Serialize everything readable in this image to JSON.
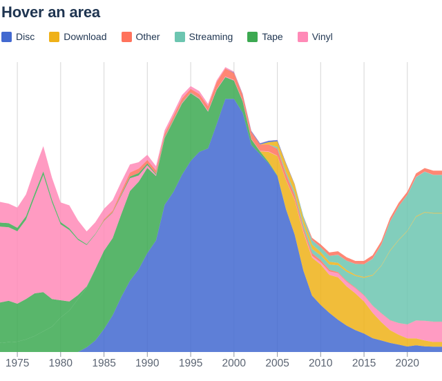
{
  "title": "Hover an area",
  "legend": {
    "items": [
      {
        "label": "Disc",
        "color": "#4269d0"
      },
      {
        "label": "Download",
        "color": "#efb118"
      },
      {
        "label": "Other",
        "color": "#ff725c"
      },
      {
        "label": "Streaming",
        "color": "#6cc5b0"
      },
      {
        "label": "Tape",
        "color": "#3ca951"
      },
      {
        "label": "Vinyl",
        "color": "#ff8ab7"
      }
    ]
  },
  "axis": {
    "x_ticks": [
      1975,
      1980,
      1985,
      1990,
      1995,
      2000,
      2005,
      2010,
      2015,
      2020
    ],
    "tick_color": "#8f96a0",
    "label_color": "#5b6472",
    "grid_color": "#d6d6d6"
  },
  "chart_data": {
    "type": "area",
    "stacked": true,
    "title": "Hover an area",
    "xlabel": "",
    "ylabel": "",
    "ylim": [
      0,
      25.2
    ],
    "grid": "vertical",
    "legend_position": "top",
    "fill_opacity": 0.85,
    "x": [
      1973,
      1974,
      1975,
      1976,
      1977,
      1978,
      1979,
      1980,
      1981,
      1982,
      1983,
      1984,
      1985,
      1986,
      1987,
      1988,
      1989,
      1990,
      1991,
      1992,
      1993,
      1994,
      1995,
      1996,
      1997,
      1998,
      1999,
      2000,
      2001,
      2002,
      2003,
      2004,
      2005,
      2006,
      2007,
      2008,
      2009,
      2010,
      2011,
      2012,
      2013,
      2014,
      2015,
      2016,
      2017,
      2018,
      2019,
      2020,
      2021,
      2022,
      2023
    ],
    "groups": {
      "Disc": "#4269d0",
      "Download": "#efb118",
      "Other": "#ff725c",
      "Streaming": "#6cc5b0",
      "Tape": "#3ca951",
      "Vinyl": "#ff8ab7"
    },
    "series": [
      {
        "id": "disc-main",
        "group": "Disc",
        "color": "#4269d0",
        "values": [
          0,
          0,
          0,
          0,
          0,
          0,
          0,
          0,
          0,
          0,
          0.4,
          1.0,
          2.0,
          3.2,
          4.8,
          6.2,
          7.2,
          8.6,
          9.7,
          12.8,
          13.9,
          15.4,
          16.6,
          17.4,
          17.7,
          19.8,
          22.0,
          22.0,
          20.8,
          18.0,
          17.2,
          16.4,
          15.3,
          12.4,
          10.2,
          7.1,
          4.9,
          4.1,
          3.4,
          2.8,
          2.3,
          1.9,
          1.6,
          1.2,
          1.0,
          0.8,
          0.65,
          0.48,
          0.58,
          0.5,
          0.47
        ]
      },
      {
        "id": "tape-cassette",
        "group": "Tape",
        "color": "#3ca951",
        "values": [
          0.8,
          0.85,
          0.9,
          1.1,
          1.4,
          1.8,
          2.2,
          3.0,
          3.6,
          4.6,
          5.2,
          6.2,
          6.8,
          6.7,
          7.2,
          7.8,
          7.6,
          7.4,
          5.6,
          5.8,
          6.2,
          6.2,
          5.9,
          4.6,
          3.2,
          3.0,
          1.9,
          1.6,
          1.0,
          0.5,
          0.25,
          0.1,
          0.04,
          0.02,
          0,
          0,
          0,
          0,
          0,
          0,
          0,
          0,
          0,
          0,
          0,
          0,
          0,
          0,
          0,
          0,
          0
        ]
      },
      {
        "id": "tape-8track",
        "group": "Tape",
        "color": "#3ca951",
        "values": [
          3.5,
          3.6,
          3.3,
          3.5,
          3.7,
          3.4,
          2.4,
          1.5,
          0.8,
          0.35,
          0.1,
          0.02,
          0,
          0,
          0,
          0,
          0,
          0,
          0,
          0,
          0,
          0,
          0,
          0,
          0,
          0,
          0,
          0,
          0,
          0,
          0,
          0,
          0,
          0,
          0,
          0,
          0,
          0,
          0,
          0,
          0,
          0,
          0,
          0,
          0,
          0,
          0,
          0,
          0,
          0,
          0
        ]
      },
      {
        "id": "download-main",
        "group": "Download",
        "color": "#efb118",
        "values": [
          0,
          0,
          0,
          0,
          0,
          0,
          0,
          0,
          0,
          0,
          0,
          0,
          0,
          0,
          0,
          0,
          0,
          0,
          0,
          0,
          0,
          0,
          0,
          0,
          0,
          0,
          0,
          0,
          0,
          0,
          0,
          0.9,
          1.7,
          2.5,
          3.0,
          3.3,
          3.3,
          3.5,
          3.3,
          3.7,
          3.4,
          3.2,
          2.8,
          2.2,
          1.6,
          1.1,
          0.85,
          0.7,
          0.6,
          0.5,
          0.4
        ]
      },
      {
        "id": "vinyl-lp",
        "group": "Vinyl",
        "color": "#ff8ab7",
        "values": [
          6.6,
          6.4,
          6.3,
          6.9,
          8.4,
          10.2,
          8.4,
          6.6,
          6.2,
          4.8,
          3.6,
          3.0,
          2.6,
          2.2,
          1.6,
          1.1,
          0.55,
          0.25,
          0.1,
          0.06,
          0.05,
          0.06,
          0.05,
          0.07,
          0.07,
          0.06,
          0.05,
          0.05,
          0.05,
          0.04,
          0.04,
          0.04,
          0.03,
          0.04,
          0.05,
          0.1,
          0.15,
          0.2,
          0.3,
          0.35,
          0.4,
          0.45,
          0.5,
          0.6,
          0.75,
          0.85,
          1.0,
          1.2,
          1.55,
          1.7,
          1.75
        ]
      },
      {
        "id": "tape-other",
        "group": "Tape",
        "color": "#3ca951",
        "values": [
          0.35,
          0.35,
          0.3,
          0.3,
          0.3,
          0.3,
          0.25,
          0.2,
          0.15,
          0.1,
          0.08,
          0.06,
          0.05,
          0.05,
          0.1,
          0.15,
          0.2,
          0.15,
          0.1,
          0.06,
          0.04,
          0.03,
          0.02,
          0.01,
          0,
          0,
          0,
          0,
          0,
          0,
          0,
          0,
          0,
          0,
          0,
          0,
          0,
          0,
          0,
          0,
          0,
          0,
          0,
          0,
          0,
          0,
          0,
          0,
          0,
          0,
          0
        ]
      },
      {
        "id": "other-music-video",
        "group": "Other",
        "color": "#ff725c",
        "values": [
          0,
          0,
          0,
          0,
          0,
          0,
          0,
          0,
          0,
          0,
          0,
          0,
          0.1,
          0.15,
          0.3,
          0.35,
          0.4,
          0.3,
          0.3,
          0.25,
          0.3,
          0.35,
          0.3,
          0.35,
          0.4,
          0.6,
          0.7,
          0.6,
          0.5,
          0.6,
          0.55,
          0.6,
          0.6,
          0.5,
          0.4,
          0.3,
          0.25,
          0.2,
          0.15,
          0.1,
          0.08,
          0.06,
          0.05,
          0.04,
          0.03,
          0.03,
          0.02,
          0.02,
          0.02,
          0.02,
          0.02
        ]
      },
      {
        "id": "streaming-subscription",
        "group": "Streaming",
        "color": "#6cc5b0",
        "values": [
          0,
          0,
          0,
          0,
          0,
          0,
          0,
          0,
          0,
          0,
          0,
          0,
          0,
          0,
          0,
          0,
          0,
          0,
          0,
          0,
          0,
          0,
          0,
          0,
          0,
          0,
          0,
          0,
          0,
          0,
          0,
          0,
          0.15,
          0.2,
          0.25,
          0.3,
          0.35,
          0.4,
          0.45,
          0.6,
          0.8,
          1.0,
          1.5,
          2.6,
          4.1,
          6.0,
          7.2,
          8.1,
          9.0,
          9.4,
          9.4
        ]
      },
      {
        "id": "download-ringtones",
        "group": "Download",
        "color": "#efb118",
        "values": [
          0,
          0,
          0,
          0,
          0,
          0,
          0,
          0,
          0,
          0,
          0,
          0,
          0,
          0,
          0,
          0,
          0,
          0,
          0,
          0,
          0,
          0,
          0,
          0,
          0,
          0,
          0,
          0,
          0,
          0,
          0,
          0.2,
          0.5,
          0.7,
          0.65,
          0.5,
          0.4,
          0.3,
          0.25,
          0.2,
          0.15,
          0.1,
          0.08,
          0.06,
          0.05,
          0.05,
          0.05,
          0.05,
          0.05,
          0.05,
          0.05
        ]
      },
      {
        "id": "streaming-ad-supported",
        "group": "Streaming",
        "color": "#6cc5b0",
        "values": [
          0,
          0,
          0,
          0,
          0,
          0,
          0,
          0,
          0,
          0,
          0,
          0,
          0,
          0,
          0,
          0,
          0,
          0,
          0,
          0,
          0,
          0,
          0,
          0,
          0,
          0,
          0,
          0,
          0,
          0,
          0,
          0,
          0,
          0,
          0,
          0.2,
          0.35,
          0.4,
          0.5,
          0.7,
          0.8,
          0.95,
          1.1,
          1.4,
          1.8,
          2.5,
          2.9,
          3.1,
          3.4,
          3.5,
          3.3
        ]
      },
      {
        "id": "disc-premium",
        "group": "Disc",
        "color": "#4269d0",
        "values": [
          0,
          0,
          0,
          0,
          0,
          0,
          0,
          0,
          0,
          0,
          0,
          0,
          0,
          0,
          0,
          0,
          0,
          0,
          0,
          0,
          0,
          0,
          0,
          0,
          0,
          0,
          0,
          0.05,
          0.06,
          0.08,
          0.1,
          0.12,
          0.1,
          0.08,
          0.05,
          0.03,
          0.02,
          0,
          0,
          0,
          0,
          0,
          0,
          0,
          0,
          0,
          0,
          0,
          0,
          0,
          0
        ]
      },
      {
        "id": "vinyl-single",
        "group": "Vinyl",
        "color": "#ff8ab7",
        "values": [
          1.8,
          1.7,
          1.75,
          1.9,
          2.1,
          2.2,
          1.9,
          1.7,
          2.0,
          1.6,
          1.1,
          1.0,
          0.9,
          0.9,
          0.8,
          0.7,
          0.55,
          0.45,
          0.35,
          0.3,
          0.3,
          0.3,
          0.25,
          0.25,
          0.2,
          0.15,
          0.12,
          0.08,
          0.05,
          0.03,
          0.02,
          0.01,
          0.01,
          0.01,
          0.01,
          0.01,
          0.01,
          0.01,
          0.01,
          0.01,
          0.01,
          0.01,
          0.01,
          0.01,
          0.01,
          0.01,
          0.01,
          0.01,
          0.02,
          0.02,
          0.02
        ]
      },
      {
        "id": "other-sync",
        "group": "Other",
        "color": "#ff725c",
        "values": [
          0,
          0,
          0,
          0,
          0,
          0,
          0,
          0,
          0,
          0,
          0,
          0,
          0,
          0,
          0,
          0,
          0,
          0,
          0,
          0,
          0,
          0,
          0,
          0,
          0,
          0,
          0,
          0,
          0,
          0,
          0,
          0,
          0,
          0,
          0,
          0,
          0.2,
          0.25,
          0.3,
          0.3,
          0.3,
          0.25,
          0.28,
          0.3,
          0.3,
          0.3,
          0.3,
          0.28,
          0.3,
          0.3,
          0.35
        ]
      }
    ]
  }
}
